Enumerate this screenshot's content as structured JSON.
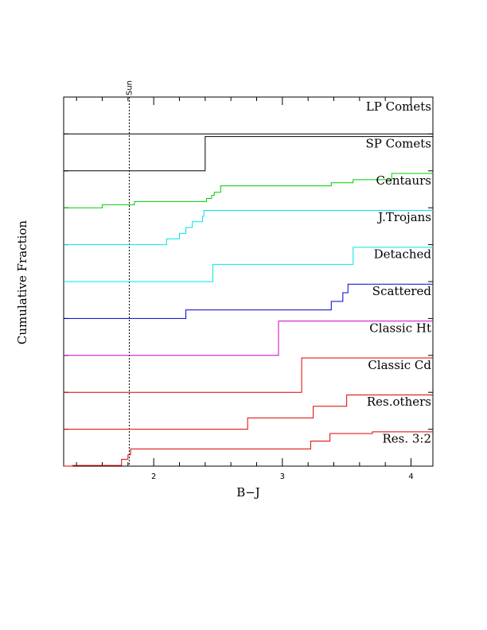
{
  "chart_data": {
    "type": "line",
    "title": "",
    "xlabel": "B−J",
    "ylabel": "Cumulative Fraction",
    "xlim": [
      1.3,
      4.17
    ],
    "x_ticks": [
      {
        "value": 2,
        "label": "2"
      },
      {
        "value": 3,
        "label": "3"
      },
      {
        "value": 4,
        "label": "4"
      }
    ],
    "grid": false,
    "legend": "labels-right",
    "reference_line": {
      "x": 1.81,
      "label": "Sun",
      "style": "dotted"
    },
    "series": [
      {
        "name": "LP Comets",
        "color": "#000000",
        "steps": []
      },
      {
        "name": "SP Comets",
        "color": "#000000",
        "steps": [
          {
            "x": 2.4,
            "y": 1.0
          }
        ]
      },
      {
        "name": "Centaurs",
        "color": "#00cc00",
        "steps": [
          {
            "x": 1.6,
            "y": 0.09
          },
          {
            "x": 1.85,
            "y": 0.18
          },
          {
            "x": 2.41,
            "y": 0.27
          },
          {
            "x": 2.45,
            "y": 0.36
          },
          {
            "x": 2.47,
            "y": 0.45
          },
          {
            "x": 2.52,
            "y": 0.64
          },
          {
            "x": 3.38,
            "y": 0.73
          },
          {
            "x": 3.55,
            "y": 0.82
          },
          {
            "x": 3.85,
            "y": 1.0
          }
        ]
      },
      {
        "name": "J.Trojans",
        "color": "#00e5e5",
        "steps": [
          {
            "x": 2.1,
            "y": 0.17
          },
          {
            "x": 2.2,
            "y": 0.33
          },
          {
            "x": 2.25,
            "y": 0.5
          },
          {
            "x": 2.3,
            "y": 0.67
          },
          {
            "x": 2.38,
            "y": 0.83
          },
          {
            "x": 2.39,
            "y": 1.0
          }
        ]
      },
      {
        "name": "Detached",
        "color": "#00e5e5",
        "steps": [
          {
            "x": 2.46,
            "y": 0.5
          },
          {
            "x": 3.55,
            "y": 1.0
          }
        ]
      },
      {
        "name": "Scattered",
        "color": "#0000cc",
        "steps": [
          {
            "x": 2.25,
            "y": 0.25
          },
          {
            "x": 3.38,
            "y": 0.5
          },
          {
            "x": 3.47,
            "y": 0.75
          },
          {
            "x": 3.51,
            "y": 1.0
          }
        ]
      },
      {
        "name": "Classic Ht",
        "color": "#cc00cc",
        "steps": [
          {
            "x": 2.97,
            "y": 1.0
          }
        ]
      },
      {
        "name": "Classic Cd",
        "color": "#dd0000",
        "steps": [
          {
            "x": 3.15,
            "y": 1.0
          }
        ]
      },
      {
        "name": "Res.others",
        "color": "#dd0000",
        "steps": [
          {
            "x": 2.73,
            "y": 0.33
          },
          {
            "x": 3.24,
            "y": 0.67
          },
          {
            "x": 3.5,
            "y": 1.0
          }
        ]
      },
      {
        "name": "Res. 3:2",
        "color": "#dd0000",
        "steps": [
          {
            "x": 1.37,
            "y": 0.02
          },
          {
            "x": 1.75,
            "y": 0.2
          },
          {
            "x": 1.8,
            "y": 0.33
          },
          {
            "x": 1.82,
            "y": 0.5
          },
          {
            "x": 3.22,
            "y": 0.73
          },
          {
            "x": 3.37,
            "y": 0.95
          },
          {
            "x": 3.7,
            "y": 1.0
          }
        ]
      }
    ]
  }
}
